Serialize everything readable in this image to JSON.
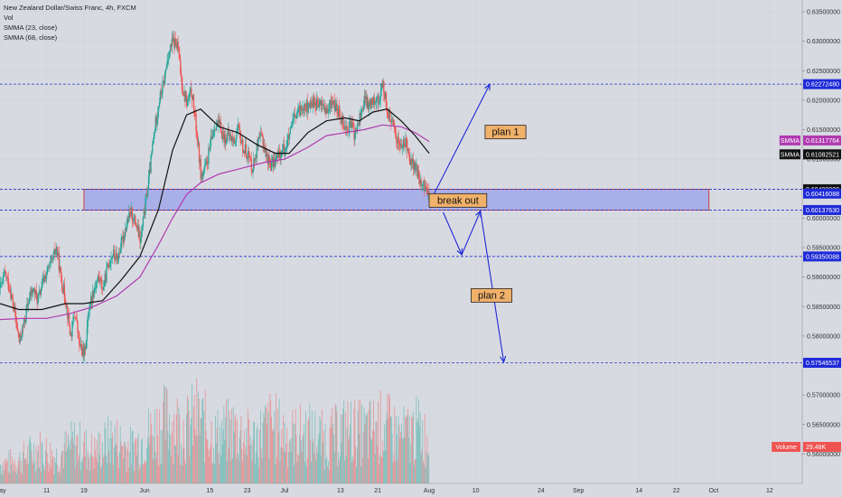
{
  "legend": {
    "title": "New Zealand Dollar/Swiss Franc, 4h, FXCM",
    "vol": "Vol",
    "smma_fast": "SMMA (23, close)",
    "smma_slow": "SMMA (68, close)"
  },
  "chart_data": {
    "type": "candlestick",
    "title": "New Zealand Dollar/Swiss Franc, 4h, FXCM",
    "ylim": [
      0.555,
      0.637
    ],
    "y_ticks": [
      "0.63500000",
      "0.63000000",
      "0.62500000",
      "0.62000000",
      "0.61500000",
      "0.61000000",
      "0.60500000",
      "0.60000000",
      "0.59500000",
      "0.59000000",
      "0.58500000",
      "0.58000000",
      "0.57500000",
      "0.57000000",
      "0.56500000",
      "0.56000000"
    ],
    "x_ticks": [
      "May",
      "11",
      "19",
      "Jun",
      "15",
      "23",
      "Jul",
      "13",
      "21",
      "Aug",
      "10",
      "24",
      "Sep",
      "14",
      "22",
      "Oct",
      "12"
    ],
    "x_tick_days": [
      0,
      10,
      18,
      31,
      45,
      53,
      61,
      73,
      81,
      92,
      102,
      116,
      124,
      137,
      145,
      153,
      165
    ],
    "x_range_days": [
      0,
      172
    ],
    "close_path": [
      [
        0,
        0.5882
      ],
      [
        1,
        0.5905
      ],
      [
        2,
        0.588
      ],
      [
        3,
        0.584
      ],
      [
        4,
        0.579
      ],
      [
        5,
        0.582
      ],
      [
        6,
        0.586
      ],
      [
        7,
        0.588
      ],
      [
        8,
        0.586
      ],
      [
        9,
        0.589
      ],
      [
        10,
        0.591
      ],
      [
        11,
        0.5925
      ],
      [
        12,
        0.595
      ],
      [
        13,
        0.5895
      ],
      [
        14,
        0.586
      ],
      [
        15,
        0.58
      ],
      [
        16,
        0.584
      ],
      [
        17,
        0.578
      ],
      [
        18,
        0.577
      ],
      [
        19,
        0.585
      ],
      [
        20,
        0.588
      ],
      [
        21,
        0.59
      ],
      [
        22,
        0.588
      ],
      [
        23,
        0.592
      ],
      [
        24,
        0.594
      ],
      [
        25,
        0.593
      ],
      [
        26,
        0.596
      ],
      [
        27,
        0.599
      ],
      [
        28,
        0.601
      ],
      [
        29,
        0.599
      ],
      [
        30,
        0.596
      ],
      [
        31,
        0.602
      ],
      [
        32,
        0.608
      ],
      [
        33,
        0.615
      ],
      [
        34,
        0.62
      ],
      [
        35,
        0.623
      ],
      [
        36,
        0.628
      ],
      [
        37,
        0.63
      ],
      [
        38,
        0.629
      ],
      [
        39,
        0.622
      ],
      [
        40,
        0.6195
      ],
      [
        41,
        0.6215
      ],
      [
        42,
        0.615
      ],
      [
        43,
        0.607
      ],
      [
        44,
        0.6085
      ],
      [
        45,
        0.6125
      ],
      [
        46,
        0.616
      ],
      [
        47,
        0.6155
      ],
      [
        48,
        0.6135
      ],
      [
        49,
        0.614
      ],
      [
        50,
        0.613
      ],
      [
        51,
        0.615
      ],
      [
        52,
        0.6118
      ],
      [
        53,
        0.611
      ],
      [
        54,
        0.6085
      ],
      [
        55,
        0.612
      ],
      [
        56,
        0.614
      ],
      [
        57,
        0.6105
      ],
      [
        58,
        0.609
      ],
      [
        59,
        0.61
      ],
      [
        60,
        0.611
      ],
      [
        61,
        0.612
      ],
      [
        62,
        0.614
      ],
      [
        63,
        0.617
      ],
      [
        64,
        0.618
      ],
      [
        65,
        0.6195
      ],
      [
        66,
        0.6185
      ],
      [
        67,
        0.62
      ],
      [
        68,
        0.619
      ],
      [
        69,
        0.6195
      ],
      [
        70,
        0.6175
      ],
      [
        71,
        0.62
      ],
      [
        72,
        0.6185
      ],
      [
        73,
        0.6175
      ],
      [
        74,
        0.615
      ],
      [
        75,
        0.616
      ],
      [
        76,
        0.614
      ],
      [
        77,
        0.617
      ],
      [
        78,
        0.62
      ],
      [
        79,
        0.619
      ],
      [
        80,
        0.6205
      ],
      [
        81,
        0.62
      ],
      [
        82,
        0.6225
      ],
      [
        83,
        0.618
      ],
      [
        84,
        0.616
      ],
      [
        85,
        0.6135
      ],
      [
        86,
        0.612
      ],
      [
        87,
        0.613
      ],
      [
        88,
        0.6095
      ],
      [
        89,
        0.6085
      ],
      [
        90,
        0.606
      ],
      [
        91,
        0.605
      ],
      [
        92,
        0.6045
      ]
    ],
    "smma_23_path": [
      [
        0,
        0.5855
      ],
      [
        4,
        0.5845
      ],
      [
        9,
        0.5845
      ],
      [
        14,
        0.5855
      ],
      [
        18,
        0.5855
      ],
      [
        22,
        0.586
      ],
      [
        26,
        0.5895
      ],
      [
        30,
        0.5935
      ],
      [
        34,
        0.6015
      ],
      [
        37,
        0.6115
      ],
      [
        40,
        0.6175
      ],
      [
        43,
        0.6185
      ],
      [
        47,
        0.6155
      ],
      [
        51,
        0.6145
      ],
      [
        55,
        0.6125
      ],
      [
        59,
        0.611
      ],
      [
        62,
        0.611
      ],
      [
        66,
        0.6145
      ],
      [
        70,
        0.6165
      ],
      [
        74,
        0.617
      ],
      [
        77,
        0.6165
      ],
      [
        80,
        0.618
      ],
      [
        83,
        0.6185
      ],
      [
        86,
        0.6165
      ],
      [
        89,
        0.614
      ],
      [
        92,
        0.611
      ]
    ],
    "smma_68_path": [
      [
        0,
        0.5828
      ],
      [
        5,
        0.583
      ],
      [
        10,
        0.583
      ],
      [
        15,
        0.5838
      ],
      [
        20,
        0.585
      ],
      [
        25,
        0.5868
      ],
      [
        30,
        0.59
      ],
      [
        34,
        0.5955
      ],
      [
        37,
        0.6
      ],
      [
        40,
        0.604
      ],
      [
        43,
        0.606
      ],
      [
        47,
        0.6075
      ],
      [
        52,
        0.6085
      ],
      [
        57,
        0.6095
      ],
      [
        61,
        0.61
      ],
      [
        66,
        0.612
      ],
      [
        70,
        0.614
      ],
      [
        74,
        0.6145
      ],
      [
        78,
        0.615
      ],
      [
        82,
        0.6158
      ],
      [
        86,
        0.6155
      ],
      [
        89,
        0.6145
      ],
      [
        92,
        0.613
      ]
    ],
    "volume_bars": [
      [
        0,
        0.56
      ],
      [
        4,
        0.561
      ],
      [
        8,
        0.564
      ],
      [
        12,
        0.562
      ],
      [
        16,
        0.5655
      ],
      [
        20,
        0.563
      ],
      [
        24,
        0.5665
      ],
      [
        28,
        0.564
      ],
      [
        32,
        0.568
      ],
      [
        36,
        0.5715
      ],
      [
        38,
        0.57
      ],
      [
        40,
        0.569
      ],
      [
        42,
        0.572
      ],
      [
        46,
        0.567
      ],
      [
        50,
        0.569
      ],
      [
        54,
        0.566
      ],
      [
        58,
        0.57
      ],
      [
        62,
        0.567
      ],
      [
        66,
        0.568
      ],
      [
        70,
        0.566
      ],
      [
        74,
        0.569
      ],
      [
        78,
        0.568
      ],
      [
        82,
        0.57
      ],
      [
        86,
        0.567
      ],
      [
        90,
        0.569
      ],
      [
        92,
        0.565
      ]
    ],
    "horizontal_lines": [
      0.6227248,
      0.6049,
      0.6013763,
      0.59350088,
      0.57546537
    ],
    "zone": {
      "day_start": 18,
      "day_end": 152,
      "top": 0.6049,
      "bottom": 0.6013763
    },
    "price_tags": [
      {
        "value": 0.6227248,
        "label": "0.62272480",
        "bg": "#1e2ad8",
        "fg": "#ffffff"
      },
      {
        "value": 0.61317764,
        "label": "0.61317764",
        "prefix": "SMMA",
        "bg": "#b03ab0",
        "fg": "#ffffff"
      },
      {
        "value": 0.61082521,
        "label": "0.61082521",
        "prefix": "SMMA",
        "bg": "#111111",
        "fg": "#ffffff"
      },
      {
        "value": 0.6049,
        "label": "0.60490000",
        "bg": "#111111",
        "fg": "#ffffff"
      },
      {
        "value": 0.60416088,
        "label": "0.60416088",
        "bg": "#1e2ad8",
        "fg": "#ffffff"
      },
      {
        "value": 0.6013763,
        "label": "0.60137630",
        "bg": "#1e2ad8",
        "fg": "#ffffff"
      },
      {
        "value": 0.59350088,
        "label": "0.59350088",
        "bg": "#1e2ad8",
        "fg": "#ffffff"
      },
      {
        "value": 0.57546537,
        "label": "0.57546537",
        "bg": "#1e2ad8",
        "fg": "#ffffff"
      },
      {
        "value": 0.5612,
        "label": "29.48K",
        "prefix": "Volume",
        "bg": "#ef5350",
        "fg": "#ffffff"
      }
    ],
    "annotations": [
      {
        "label": "plan 1",
        "day": 104,
        "value": 0.6146
      },
      {
        "label": "break out",
        "day": 92,
        "value": 0.603
      },
      {
        "label": "plan 2",
        "day": 101,
        "value": 0.5869
      }
    ],
    "arrows": [
      {
        "points": [
          [
            93,
            0.604
          ],
          [
            105,
            0.6227
          ]
        ]
      },
      {
        "points": [
          [
            95,
            0.601
          ],
          [
            99,
            0.5938
          ],
          [
            103,
            0.6012
          ],
          [
            108,
            0.5756
          ]
        ]
      }
    ],
    "colors": {
      "background": "#d8dae1",
      "up": "#26a69a",
      "down": "#ef5350",
      "smma_23": "#111111",
      "smma_68": "#b03ab0",
      "hline": "#2233cc",
      "zone_fill": "#9aa2ea",
      "zone_stroke": "#cc2222",
      "arrow": "#1e2ad8",
      "note_bg": "#f0b16a"
    }
  }
}
